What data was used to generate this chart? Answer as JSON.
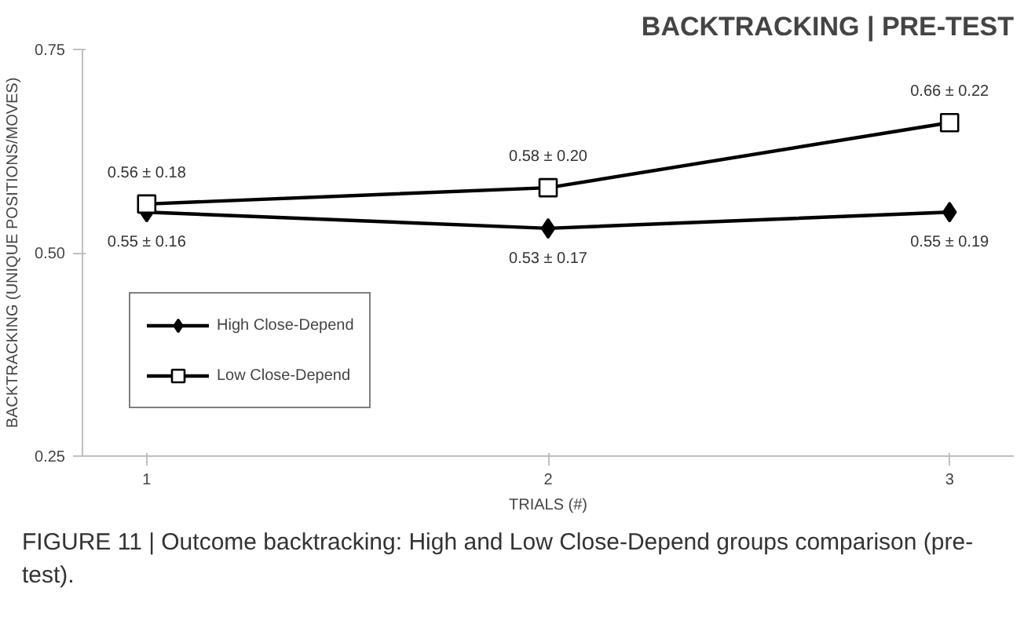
{
  "chart_data": {
    "type": "line",
    "title": "BACKTRACKING | PRE-TEST",
    "xlabel": "TRIALS (#)",
    "ylabel": "BACKTRACKING (UNIQUE POSITIONS/MOVES)",
    "categories": [
      "1",
      "2",
      "3"
    ],
    "series": [
      {
        "name": "High Close-Depend",
        "color": "#000000",
        "marker": "diamond",
        "values": [
          0.55,
          0.53,
          0.55
        ],
        "value_labels": [
          "0.55 ± 0.16",
          "0.53 ± 0.17",
          "0.55 ± 0.19"
        ]
      },
      {
        "name": "Low Close-Depend",
        "color": "#000000",
        "marker": "square",
        "values": [
          0.56,
          0.58,
          0.66
        ],
        "value_labels": [
          "0.56 ± 0.18",
          "0.58 ± 0.20",
          "0.66 ± 0.22"
        ]
      }
    ],
    "ylim": [
      0.25,
      0.75
    ],
    "yticks": [
      0.25,
      {
        "value": 0.5,
        "label": "0.50"
      },
      0.75
    ],
    "grid": false,
    "legend": "bottom left",
    "line_style": "solid",
    "annotations": [
      "FIGURE 11 | Outcome backtracking: High and Low Close-Depend groups comparison (pre-test)."
    ]
  }
}
